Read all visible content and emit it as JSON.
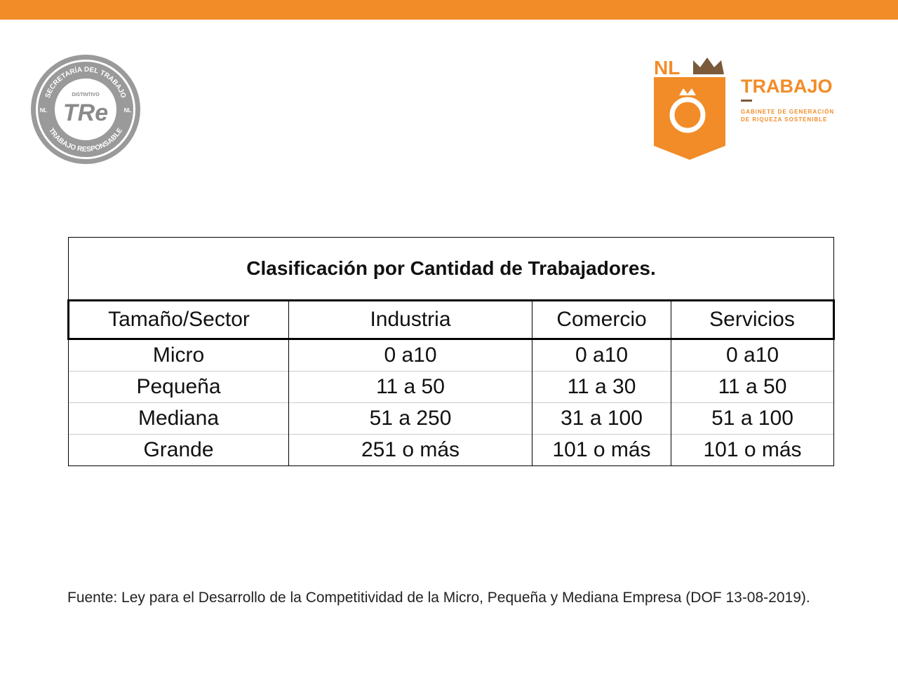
{
  "header": {
    "seal": {
      "ring_top": "SECRETARÍA DEL TRABAJO",
      "ring_bottom": "TRABAJO RESPONSABLE",
      "small": "DISTINTIVO",
      "mark": "TRe",
      "side_left": "NL",
      "side_right": "NL"
    },
    "brand": {
      "nl": "NL",
      "title": "TRABAJO",
      "subtitle_1": "GABINETE DE GENERACIÓN",
      "subtitle_2": "DE RIQUEZA SOSTENIBLE"
    }
  },
  "table": {
    "title": "Clasificación por Cantidad de Trabajadores.",
    "columns": [
      "Tamaño/Sector",
      "Industria",
      "Comercio",
      "Servicios"
    ],
    "rows": [
      [
        "Micro",
        "0 a10",
        "0 a10",
        "0 a10"
      ],
      [
        "Pequeña",
        "11 a 50",
        "11 a 30",
        "11 a 50"
      ],
      [
        "Mediana",
        "51 a 250",
        "31 a 100",
        "51 a 100"
      ],
      [
        "Grande",
        "251 o más",
        "101 o más",
        "101 o más"
      ]
    ]
  },
  "footer": {
    "source": "Fuente: Ley para el Desarrollo de la Competitividad de la Micro, Pequeña y Mediana Empresa (DOF 13-08-2019)."
  }
}
